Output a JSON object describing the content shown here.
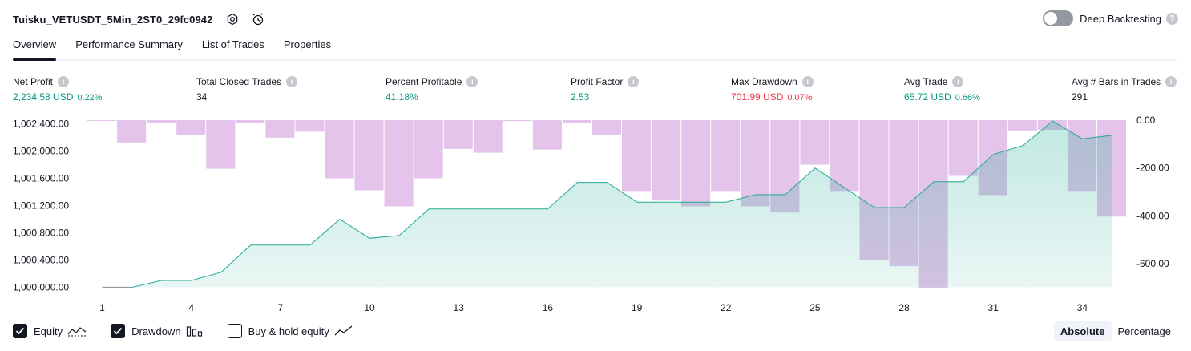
{
  "header": {
    "title": "Tuisku_VETUSDT_5Min_2ST0_29fc0942",
    "settings_icon": "gear-icon",
    "alert_icon": "alarm-clock-icon"
  },
  "deep_backtesting": {
    "label": "Deep Backtesting",
    "enabled": false,
    "help": "?"
  },
  "tabs": [
    {
      "label": "Overview",
      "active": true
    },
    {
      "label": "Performance Summary",
      "active": false
    },
    {
      "label": "List of Trades",
      "active": false
    },
    {
      "label": "Properties",
      "active": false
    }
  ],
  "metrics": [
    {
      "label": "Net Profit",
      "value": "2,234.58 USD",
      "pct": "0.22%",
      "color": "green"
    },
    {
      "label": "Total Closed Trades",
      "value": "34",
      "pct": "",
      "color": "neutral"
    },
    {
      "label": "Percent Profitable",
      "value": "41.18%",
      "pct": "",
      "color": "green"
    },
    {
      "label": "Profit Factor",
      "value": "2.53",
      "pct": "",
      "color": "green"
    },
    {
      "label": "Max Drawdown",
      "value": "701.99 USD",
      "pct": "0.07%",
      "color": "red"
    },
    {
      "label": "Avg Trade",
      "value": "65.72 USD",
      "pct": "0.66%",
      "color": "green"
    },
    {
      "label": "Avg # Bars in Trades",
      "value": "291",
      "pct": "",
      "color": "neutral"
    }
  ],
  "chart_data": {
    "type": "area",
    "x_ticks": [
      "1",
      "4",
      "7",
      "10",
      "13",
      "16",
      "19",
      "22",
      "25",
      "28",
      "31",
      "34"
    ],
    "left_axis": {
      "ticks": [
        "1,002,400.00",
        "1,002,000.00",
        "1,001,600.00",
        "1,001,200.00",
        "1,000,800.00",
        "1,000,400.00",
        "1,000,000.00"
      ],
      "ylim": [
        1000000,
        1002400
      ]
    },
    "right_axis": {
      "ticks": [
        "0.00",
        "-200.00",
        "-400.00",
        "-600.00"
      ],
      "ylim": [
        -700,
        0
      ]
    },
    "series": [
      {
        "name": "Equity",
        "type": "area",
        "color": "#22ab94",
        "x": [
          1,
          2,
          3,
          4,
          5,
          6,
          7,
          8,
          9,
          10,
          11,
          12,
          13,
          14,
          15,
          16,
          17,
          18,
          19,
          20,
          21,
          22,
          23,
          24,
          25,
          26,
          27,
          28,
          29,
          30,
          31,
          32,
          33,
          34,
          35
        ],
        "values": [
          1000000,
          1000000,
          1000100,
          1000100,
          1000220,
          1000620,
          1000620,
          1000620,
          1001000,
          1000720,
          1000760,
          1001150,
          1001150,
          1001150,
          1001150,
          1001150,
          1001540,
          1001540,
          1001250,
          1001250,
          1001250,
          1001250,
          1001360,
          1001360,
          1001750,
          1001460,
          1001170,
          1001170,
          1001550,
          1001550,
          1001950,
          1002080,
          1002440,
          1002180,
          1002230
        ]
      },
      {
        "name": "Drawdown",
        "type": "bar",
        "color": "#b39ddb",
        "x": [
          1,
          2,
          3,
          4,
          5,
          6,
          7,
          8,
          9,
          10,
          11,
          12,
          13,
          14,
          15,
          16,
          17,
          18,
          19,
          20,
          21,
          22,
          23,
          24,
          25,
          26,
          27,
          28,
          29,
          30,
          31,
          32,
          33,
          34,
          35
        ],
        "values": [
          -3,
          -93,
          -10,
          -62,
          -203,
          -13,
          -73,
          -48,
          -243,
          -293,
          -360,
          -243,
          -120,
          -136,
          -4,
          -123,
          -10,
          -61,
          -296,
          -336,
          -360,
          -296,
          -360,
          -386,
          -186,
          -296,
          -583,
          -610,
          -703,
          -233,
          -313,
          -43,
          -40,
          -296,
          -403
        ]
      }
    ]
  },
  "legend": [
    {
      "label": "Equity",
      "checked": true,
      "icon": "equity-line-icon"
    },
    {
      "label": "Drawdown",
      "checked": true,
      "icon": "drawdown-bars-icon"
    },
    {
      "label": "Buy & hold equity",
      "checked": false,
      "icon": "buy-hold-line-icon"
    }
  ],
  "modes": [
    {
      "label": "Absolute",
      "active": true
    },
    {
      "label": "Percentage",
      "active": false
    }
  ]
}
